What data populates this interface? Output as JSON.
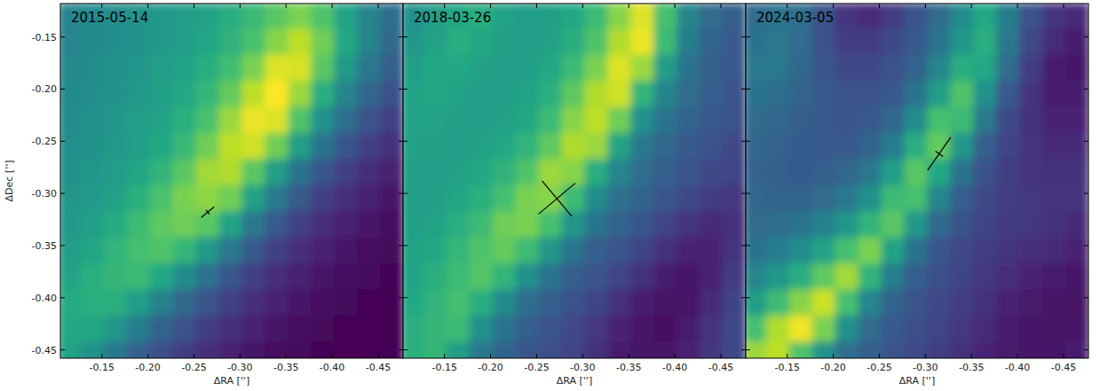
{
  "chart_data": [
    {
      "type": "heatmap",
      "title": "2015-05-14",
      "x_label": "ΔRA ['']",
      "y_label": "ΔDec ['']",
      "xlim": [
        -0.105,
        -0.477
      ],
      "ylim": [
        -0.458,
        -0.118
      ],
      "xticks": [
        -0.15,
        {
          "value": -0.2,
          "label": "-0.20"
        },
        -0.25,
        {
          "value": -0.3,
          "label": "-0.30"
        },
        -0.35,
        {
          "value": -0.4,
          "label": "-0.40"
        },
        -0.45
      ],
      "yticks": [
        -0.15,
        {
          "value": -0.2,
          "label": "-0.20"
        },
        -0.25,
        {
          "value": -0.3,
          "label": "-0.30"
        },
        -0.35,
        {
          "value": -0.4,
          "label": "-0.40"
        },
        -0.45
      ],
      "tick_labels": true,
      "color_range": [
        0,
        1
      ],
      "cell_x": [
        -0.115,
        -0.14,
        -0.165,
        -0.19,
        -0.215,
        -0.24,
        -0.265,
        -0.29,
        -0.315,
        -0.34,
        -0.365,
        -0.39,
        -0.415,
        -0.44,
        -0.465
      ],
      "cell_y": [
        -0.13,
        -0.155,
        -0.18,
        -0.205,
        -0.23,
        -0.255,
        -0.28,
        -0.305,
        -0.33,
        -0.355,
        -0.38,
        -0.405,
        -0.43,
        -0.455
      ],
      "cells": [
        [
          0.45,
          0.47,
          0.49,
          0.51,
          0.53,
          0.55,
          0.58,
          0.62,
          0.67,
          0.74,
          0.8,
          0.72,
          0.58,
          0.45,
          0.36
        ],
        [
          0.45,
          0.47,
          0.49,
          0.51,
          0.53,
          0.56,
          0.59,
          0.64,
          0.71,
          0.82,
          0.9,
          0.78,
          0.6,
          0.45,
          0.34
        ],
        [
          0.46,
          0.48,
          0.5,
          0.52,
          0.55,
          0.58,
          0.62,
          0.69,
          0.8,
          0.95,
          0.94,
          0.74,
          0.54,
          0.4,
          0.3
        ],
        [
          0.47,
          0.49,
          0.51,
          0.53,
          0.56,
          0.6,
          0.66,
          0.76,
          0.9,
          1.0,
          0.85,
          0.62,
          0.45,
          0.33,
          0.25
        ],
        [
          0.48,
          0.5,
          0.52,
          0.55,
          0.58,
          0.63,
          0.71,
          0.85,
          0.97,
          0.95,
          0.72,
          0.5,
          0.36,
          0.26,
          0.19
        ],
        [
          0.49,
          0.51,
          0.53,
          0.56,
          0.6,
          0.67,
          0.78,
          0.9,
          0.93,
          0.78,
          0.55,
          0.38,
          0.27,
          0.19,
          0.14
        ],
        [
          0.5,
          0.52,
          0.55,
          0.59,
          0.65,
          0.74,
          0.86,
          0.88,
          0.74,
          0.55,
          0.38,
          0.27,
          0.19,
          0.13,
          0.09
        ],
        [
          0.52,
          0.54,
          0.57,
          0.63,
          0.71,
          0.8,
          0.83,
          0.78,
          0.57,
          0.4,
          0.28,
          0.19,
          0.13,
          0.09,
          0.06
        ],
        [
          0.53,
          0.56,
          0.61,
          0.68,
          0.75,
          0.78,
          0.74,
          0.58,
          0.4,
          0.28,
          0.19,
          0.13,
          0.09,
          0.06,
          0.04
        ],
        [
          0.55,
          0.59,
          0.65,
          0.7,
          0.72,
          0.66,
          0.54,
          0.4,
          0.28,
          0.19,
          0.13,
          0.09,
          0.06,
          0.04,
          0.02
        ],
        [
          0.58,
          0.63,
          0.66,
          0.67,
          0.6,
          0.48,
          0.37,
          0.27,
          0.19,
          0.13,
          0.09,
          0.06,
          0.04,
          0.02,
          0.01
        ],
        [
          0.61,
          0.63,
          0.63,
          0.55,
          0.44,
          0.34,
          0.26,
          0.19,
          0.13,
          0.09,
          0.06,
          0.04,
          0.02,
          0.01,
          0.0
        ],
        [
          0.6,
          0.6,
          0.52,
          0.42,
          0.32,
          0.25,
          0.18,
          0.13,
          0.09,
          0.06,
          0.04,
          0.02,
          0.01,
          0.0,
          0.0
        ],
        [
          0.58,
          0.5,
          0.4,
          0.31,
          0.24,
          0.18,
          0.13,
          0.09,
          0.06,
          0.04,
          0.02,
          0.01,
          0.0,
          0.0,
          0.0
        ]
      ],
      "point": {
        "x": -0.265,
        "y": -0.318,
        "err_major": 0.009,
        "err_minor": 0.003,
        "err_angle": 40
      }
    },
    {
      "type": "heatmap",
      "title": "2018-03-26",
      "x_label": "ΔRA ['']",
      "xlim": [
        -0.105,
        -0.477
      ],
      "ylim": [
        -0.458,
        -0.118
      ],
      "xticks": [
        -0.15,
        {
          "value": -0.2,
          "label": "-0.20"
        },
        -0.25,
        {
          "value": -0.3,
          "label": "-0.30"
        },
        -0.35,
        {
          "value": -0.4,
          "label": "-0.40"
        },
        -0.45
      ],
      "yticks": [
        -0.15,
        {
          "value": -0.2,
          "label": "-0.20"
        },
        -0.25,
        {
          "value": -0.3,
          "label": "-0.30"
        },
        -0.35,
        {
          "value": -0.4,
          "label": "-0.40"
        },
        -0.45
      ],
      "tick_labels": "x",
      "color_range": [
        0,
        1
      ],
      "cell_x": [
        -0.115,
        -0.14,
        -0.165,
        -0.19,
        -0.215,
        -0.24,
        -0.265,
        -0.29,
        -0.315,
        -0.34,
        -0.365,
        -0.39,
        -0.415,
        -0.44,
        -0.465
      ],
      "cell_y": [
        -0.13,
        -0.155,
        -0.18,
        -0.205,
        -0.23,
        -0.255,
        -0.28,
        -0.305,
        -0.33,
        -0.355,
        -0.38,
        -0.405,
        -0.43,
        -0.455
      ],
      "cells": [
        [
          0.5,
          0.55,
          0.6,
          0.62,
          0.58,
          0.55,
          0.56,
          0.6,
          0.68,
          0.82,
          0.95,
          0.7,
          0.45,
          0.35,
          0.3
        ],
        [
          0.52,
          0.57,
          0.62,
          0.6,
          0.56,
          0.55,
          0.57,
          0.62,
          0.72,
          0.88,
          0.97,
          0.68,
          0.42,
          0.32,
          0.28
        ],
        [
          0.55,
          0.6,
          0.6,
          0.57,
          0.55,
          0.56,
          0.6,
          0.68,
          0.8,
          0.95,
          0.85,
          0.55,
          0.38,
          0.3,
          0.28
        ],
        [
          0.57,
          0.6,
          0.58,
          0.55,
          0.55,
          0.58,
          0.63,
          0.75,
          0.88,
          0.93,
          0.65,
          0.45,
          0.35,
          0.3,
          0.26
        ],
        [
          0.58,
          0.58,
          0.56,
          0.55,
          0.57,
          0.6,
          0.68,
          0.82,
          0.9,
          0.78,
          0.5,
          0.38,
          0.32,
          0.28,
          0.25
        ],
        [
          0.57,
          0.56,
          0.55,
          0.57,
          0.6,
          0.65,
          0.75,
          0.88,
          0.85,
          0.58,
          0.4,
          0.33,
          0.28,
          0.25,
          0.22
        ],
        [
          0.56,
          0.55,
          0.57,
          0.6,
          0.64,
          0.72,
          0.85,
          0.82,
          0.62,
          0.45,
          0.35,
          0.3,
          0.26,
          0.22,
          0.2
        ],
        [
          0.55,
          0.56,
          0.59,
          0.63,
          0.7,
          0.8,
          0.82,
          0.68,
          0.48,
          0.37,
          0.32,
          0.27,
          0.22,
          0.18,
          0.16
        ],
        [
          0.56,
          0.58,
          0.62,
          0.68,
          0.78,
          0.8,
          0.7,
          0.52,
          0.38,
          0.32,
          0.27,
          0.2,
          0.15,
          0.12,
          0.14
        ],
        [
          0.57,
          0.6,
          0.66,
          0.72,
          0.76,
          0.68,
          0.52,
          0.38,
          0.3,
          0.26,
          0.2,
          0.14,
          0.1,
          0.1,
          0.15
        ],
        [
          0.58,
          0.63,
          0.68,
          0.73,
          0.65,
          0.5,
          0.38,
          0.3,
          0.26,
          0.2,
          0.14,
          0.08,
          0.06,
          0.1,
          0.18
        ],
        [
          0.6,
          0.65,
          0.7,
          0.62,
          0.48,
          0.36,
          0.3,
          0.25,
          0.2,
          0.14,
          0.08,
          0.05,
          0.06,
          0.12,
          0.2
        ],
        [
          0.62,
          0.66,
          0.68,
          0.5,
          0.38,
          0.3,
          0.26,
          0.22,
          0.16,
          0.1,
          0.06,
          0.04,
          0.08,
          0.15,
          0.22
        ],
        [
          0.63,
          0.66,
          0.55,
          0.4,
          0.32,
          0.27,
          0.24,
          0.2,
          0.14,
          0.08,
          0.05,
          0.06,
          0.1,
          0.16,
          0.22
        ]
      ],
      "point": {
        "x": -0.272,
        "y": -0.305,
        "err_major": 0.026,
        "err_minor": 0.025,
        "err_angle": 40
      }
    },
    {
      "type": "heatmap",
      "title": "2024-03-05",
      "x_label": "ΔRA ['']",
      "xlim": [
        -0.105,
        -0.477
      ],
      "ylim": [
        -0.458,
        -0.118
      ],
      "xticks": [
        -0.15,
        {
          "value": -0.2,
          "label": "-0.20"
        },
        -0.25,
        {
          "value": -0.3,
          "label": "-0.30"
        },
        -0.35,
        {
          "value": -0.4,
          "label": "-0.40"
        },
        -0.45
      ],
      "yticks": [
        -0.15,
        {
          "value": -0.2,
          "label": "-0.20"
        },
        -0.25,
        {
          "value": -0.3,
          "label": "-0.30"
        },
        -0.35,
        {
          "value": -0.4,
          "label": "-0.40"
        },
        -0.45
      ],
      "tick_labels": "x",
      "color_range": [
        0,
        1
      ],
      "cell_x": [
        -0.115,
        -0.14,
        -0.165,
        -0.19,
        -0.215,
        -0.24,
        -0.265,
        -0.29,
        -0.315,
        -0.34,
        -0.365,
        -0.39,
        -0.415,
        -0.44,
        -0.465
      ],
      "cell_y": [
        -0.13,
        -0.155,
        -0.18,
        -0.205,
        -0.23,
        -0.255,
        -0.28,
        -0.305,
        -0.33,
        -0.355,
        -0.38,
        -0.405,
        -0.43,
        -0.455
      ],
      "cells": [
        [
          0.35,
          0.38,
          0.36,
          0.25,
          0.15,
          0.12,
          0.18,
          0.25,
          0.35,
          0.48,
          0.6,
          0.42,
          0.25,
          0.15,
          0.12
        ],
        [
          0.38,
          0.4,
          0.35,
          0.25,
          0.18,
          0.18,
          0.22,
          0.28,
          0.38,
          0.52,
          0.62,
          0.4,
          0.22,
          0.12,
          0.08
        ],
        [
          0.4,
          0.4,
          0.33,
          0.27,
          0.22,
          0.22,
          0.25,
          0.32,
          0.45,
          0.62,
          0.6,
          0.35,
          0.18,
          0.08,
          0.06
        ],
        [
          0.38,
          0.36,
          0.32,
          0.28,
          0.25,
          0.25,
          0.28,
          0.38,
          0.55,
          0.72,
          0.5,
          0.28,
          0.15,
          0.08,
          0.08
        ],
        [
          0.35,
          0.33,
          0.3,
          0.28,
          0.26,
          0.28,
          0.33,
          0.48,
          0.7,
          0.68,
          0.4,
          0.22,
          0.14,
          0.1,
          0.1
        ],
        [
          0.33,
          0.31,
          0.29,
          0.28,
          0.28,
          0.32,
          0.42,
          0.62,
          0.76,
          0.52,
          0.3,
          0.2,
          0.15,
          0.12,
          0.12
        ],
        [
          0.32,
          0.3,
          0.29,
          0.3,
          0.33,
          0.4,
          0.55,
          0.74,
          0.6,
          0.38,
          0.25,
          0.18,
          0.15,
          0.14,
          0.14
        ],
        [
          0.33,
          0.32,
          0.32,
          0.35,
          0.4,
          0.5,
          0.68,
          0.7,
          0.45,
          0.3,
          0.22,
          0.18,
          0.16,
          0.15,
          0.15
        ],
        [
          0.35,
          0.36,
          0.38,
          0.44,
          0.52,
          0.65,
          0.74,
          0.52,
          0.34,
          0.25,
          0.2,
          0.17,
          0.16,
          0.14,
          0.12
        ],
        [
          0.38,
          0.42,
          0.48,
          0.58,
          0.7,
          0.8,
          0.58,
          0.38,
          0.27,
          0.22,
          0.18,
          0.15,
          0.13,
          0.12,
          0.1
        ],
        [
          0.45,
          0.52,
          0.62,
          0.75,
          0.86,
          0.65,
          0.42,
          0.3,
          0.24,
          0.2,
          0.16,
          0.13,
          0.1,
          0.08,
          0.06
        ],
        [
          0.55,
          0.68,
          0.82,
          0.92,
          0.7,
          0.45,
          0.32,
          0.26,
          0.22,
          0.18,
          0.14,
          0.1,
          0.07,
          0.06,
          0.05
        ],
        [
          0.7,
          0.88,
          0.98,
          0.8,
          0.5,
          0.35,
          0.28,
          0.24,
          0.2,
          0.16,
          0.12,
          0.08,
          0.06,
          0.05,
          0.06
        ],
        [
          0.85,
          0.9,
          0.72,
          0.5,
          0.36,
          0.3,
          0.26,
          0.22,
          0.18,
          0.14,
          0.1,
          0.07,
          0.06,
          0.06,
          0.08
        ]
      ],
      "point": {
        "x": -0.315,
        "y": -0.262,
        "err_major": 0.022,
        "err_minor": 0.005,
        "err_angle": 55
      }
    }
  ]
}
